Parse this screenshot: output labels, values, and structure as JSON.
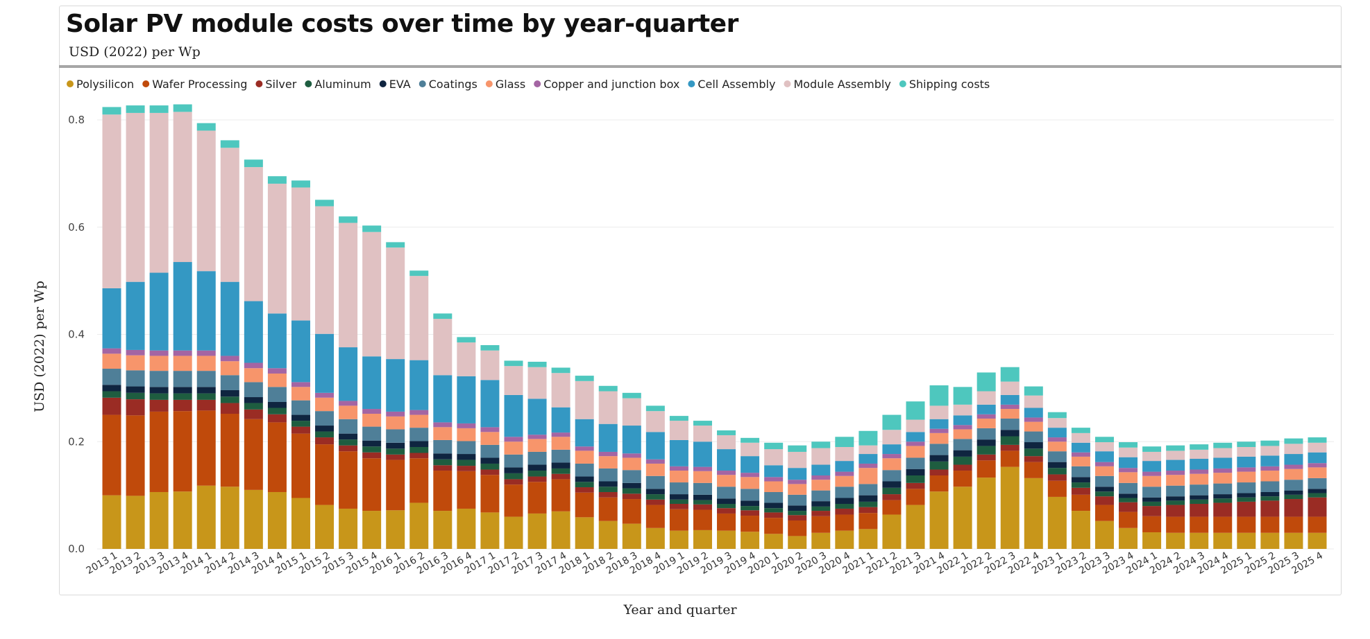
{
  "title": "Solar PV module costs over time by year-quarter",
  "subtitle": "USD (2022) per Wp",
  "chart_data": {
    "type": "bar",
    "stacked": true,
    "xlabel": "Year and quarter",
    "ylabel": "USD (2022) per Wp",
    "ylim": [
      0,
      0.85
    ],
    "yticks": [
      "0.0",
      "0.2",
      "0.4",
      "0.6",
      "0.8"
    ],
    "ytick_values": [
      0,
      0.2,
      0.4,
      0.6,
      0.8
    ],
    "grid": true,
    "legend_position": "top-left",
    "categories": [
      "2013 1",
      "2013 2",
      "2013 3",
      "2013 4",
      "2014 1",
      "2014 2",
      "2014 3",
      "2014 4",
      "2015 1",
      "2015 2",
      "2015 3",
      "2015 4",
      "2016 1",
      "2016 2",
      "2016 3",
      "2016 4",
      "2017 1",
      "2017 2",
      "2017 3",
      "2017 4",
      "2018 1",
      "2018 2",
      "2018 3",
      "2018 4",
      "2019 1",
      "2019 2",
      "2019 3",
      "2019 4",
      "2020 1",
      "2020 2",
      "2020 3",
      "2020 4",
      "2021 1",
      "2021 2",
      "2021 3",
      "2021 4",
      "2022 1",
      "2022 2",
      "2022 3",
      "2022 4",
      "2023 1",
      "2023 2",
      "2023 3",
      "2023 4",
      "2024 1",
      "2024 2",
      "2024 3",
      "2024 4",
      "2025 1",
      "2025 2",
      "2025 3",
      "2025 4"
    ],
    "series": [
      {
        "name": "Polysilicon",
        "color": "#c8961a",
        "values": [
          0.1,
          0.099,
          0.106,
          0.107,
          0.118,
          0.116,
          0.11,
          0.106,
          0.095,
          0.082,
          0.075,
          0.071,
          0.072,
          0.086,
          0.071,
          0.075,
          0.068,
          0.06,
          0.066,
          0.07,
          0.059,
          0.052,
          0.047,
          0.039,
          0.034,
          0.035,
          0.034,
          0.032,
          0.028,
          0.024,
          0.03,
          0.034,
          0.037,
          0.064,
          0.082,
          0.107,
          0.116,
          0.133,
          0.153,
          0.132,
          0.097,
          0.071,
          0.052,
          0.039,
          0.031,
          0.03,
          0.03,
          0.03,
          0.03,
          0.03,
          0.03,
          0.03
        ]
      },
      {
        "name": "Wafer Processing",
        "color": "#c04a0b",
        "values": [
          0.15,
          0.15,
          0.15,
          0.15,
          0.14,
          0.136,
          0.132,
          0.13,
          0.12,
          0.113,
          0.107,
          0.098,
          0.094,
          0.083,
          0.075,
          0.07,
          0.07,
          0.06,
          0.059,
          0.06,
          0.046,
          0.044,
          0.046,
          0.043,
          0.04,
          0.038,
          0.032,
          0.03,
          0.03,
          0.029,
          0.031,
          0.03,
          0.03,
          0.027,
          0.03,
          0.03,
          0.03,
          0.032,
          0.03,
          0.03,
          0.03,
          0.03,
          0.03,
          0.03,
          0.03,
          0.03,
          0.03,
          0.03,
          0.03,
          0.03,
          0.03,
          0.03
        ]
      },
      {
        "name": "Silver",
        "color": "#9a2c24",
        "values": [
          0.032,
          0.03,
          0.022,
          0.021,
          0.02,
          0.02,
          0.018,
          0.015,
          0.013,
          0.013,
          0.011,
          0.011,
          0.01,
          0.01,
          0.01,
          0.01,
          0.01,
          0.01,
          0.01,
          0.01,
          0.01,
          0.01,
          0.01,
          0.01,
          0.01,
          0.01,
          0.01,
          0.01,
          0.01,
          0.01,
          0.01,
          0.011,
          0.011,
          0.011,
          0.011,
          0.011,
          0.011,
          0.011,
          0.011,
          0.011,
          0.012,
          0.013,
          0.016,
          0.018,
          0.019,
          0.022,
          0.024,
          0.026,
          0.028,
          0.03,
          0.033,
          0.036
        ]
      },
      {
        "name": "Aluminum",
        "color": "#1e5d40",
        "values": [
          0.012,
          0.012,
          0.012,
          0.012,
          0.012,
          0.012,
          0.012,
          0.012,
          0.011,
          0.011,
          0.011,
          0.011,
          0.011,
          0.011,
          0.011,
          0.011,
          0.011,
          0.011,
          0.011,
          0.01,
          0.01,
          0.01,
          0.01,
          0.01,
          0.008,
          0.008,
          0.008,
          0.008,
          0.008,
          0.008,
          0.008,
          0.009,
          0.01,
          0.012,
          0.014,
          0.015,
          0.015,
          0.016,
          0.016,
          0.014,
          0.012,
          0.01,
          0.009,
          0.008,
          0.008,
          0.008,
          0.008,
          0.008,
          0.008,
          0.008,
          0.008,
          0.008
        ]
      },
      {
        "name": "EVA",
        "color": "#0f2540",
        "values": [
          0.012,
          0.012,
          0.012,
          0.012,
          0.012,
          0.012,
          0.011,
          0.011,
          0.011,
          0.011,
          0.011,
          0.011,
          0.011,
          0.011,
          0.011,
          0.011,
          0.011,
          0.011,
          0.011,
          0.011,
          0.01,
          0.01,
          0.01,
          0.01,
          0.01,
          0.01,
          0.01,
          0.01,
          0.01,
          0.01,
          0.01,
          0.011,
          0.012,
          0.012,
          0.012,
          0.012,
          0.012,
          0.012,
          0.012,
          0.012,
          0.011,
          0.01,
          0.009,
          0.008,
          0.008,
          0.008,
          0.008,
          0.008,
          0.008,
          0.008,
          0.008,
          0.008
        ]
      },
      {
        "name": "Coatings",
        "color": "#4f7f98",
        "values": [
          0.03,
          0.03,
          0.03,
          0.03,
          0.03,
          0.028,
          0.028,
          0.028,
          0.027,
          0.027,
          0.027,
          0.026,
          0.025,
          0.025,
          0.025,
          0.024,
          0.024,
          0.024,
          0.024,
          0.024,
          0.024,
          0.024,
          0.024,
          0.024,
          0.022,
          0.022,
          0.022,
          0.022,
          0.02,
          0.02,
          0.02,
          0.021,
          0.021,
          0.021,
          0.021,
          0.021,
          0.021,
          0.021,
          0.021,
          0.02,
          0.02,
          0.02,
          0.02,
          0.02,
          0.02,
          0.02,
          0.02,
          0.02,
          0.02,
          0.02,
          0.02,
          0.02
        ]
      },
      {
        "name": "Glass",
        "color": "#f7956b",
        "values": [
          0.028,
          0.028,
          0.028,
          0.028,
          0.028,
          0.026,
          0.026,
          0.025,
          0.025,
          0.025,
          0.025,
          0.024,
          0.024,
          0.024,
          0.024,
          0.024,
          0.024,
          0.024,
          0.024,
          0.024,
          0.024,
          0.023,
          0.023,
          0.023,
          0.022,
          0.022,
          0.022,
          0.022,
          0.02,
          0.02,
          0.02,
          0.02,
          0.03,
          0.022,
          0.022,
          0.02,
          0.018,
          0.018,
          0.018,
          0.018,
          0.018,
          0.018,
          0.018,
          0.02,
          0.02,
          0.02,
          0.02,
          0.02,
          0.02,
          0.02,
          0.02,
          0.02
        ]
      },
      {
        "name": "Copper and junction box",
        "color": "#a465a3",
        "values": [
          0.01,
          0.01,
          0.01,
          0.01,
          0.01,
          0.01,
          0.01,
          0.01,
          0.009,
          0.009,
          0.009,
          0.009,
          0.009,
          0.009,
          0.009,
          0.009,
          0.009,
          0.009,
          0.008,
          0.008,
          0.008,
          0.008,
          0.008,
          0.008,
          0.008,
          0.008,
          0.008,
          0.008,
          0.008,
          0.008,
          0.008,
          0.008,
          0.008,
          0.008,
          0.008,
          0.008,
          0.008,
          0.008,
          0.008,
          0.008,
          0.008,
          0.008,
          0.008,
          0.008,
          0.008,
          0.008,
          0.008,
          0.008,
          0.008,
          0.008,
          0.008,
          0.008
        ]
      },
      {
        "name": "Cell Assembly",
        "color": "#3498c3",
        "values": [
          0.112,
          0.127,
          0.145,
          0.165,
          0.148,
          0.138,
          0.115,
          0.102,
          0.115,
          0.11,
          0.1,
          0.098,
          0.098,
          0.093,
          0.088,
          0.088,
          0.088,
          0.078,
          0.067,
          0.047,
          0.051,
          0.052,
          0.052,
          0.051,
          0.049,
          0.047,
          0.04,
          0.031,
          0.022,
          0.022,
          0.02,
          0.02,
          0.018,
          0.018,
          0.018,
          0.018,
          0.018,
          0.018,
          0.018,
          0.018,
          0.018,
          0.018,
          0.02,
          0.02,
          0.02,
          0.02,
          0.02,
          0.02,
          0.02,
          0.02,
          0.02,
          0.02
        ]
      },
      {
        "name": "Module Assembly",
        "color": "#e0c1c2",
        "values": [
          0.324,
          0.315,
          0.298,
          0.28,
          0.262,
          0.25,
          0.25,
          0.242,
          0.248,
          0.238,
          0.232,
          0.232,
          0.208,
          0.157,
          0.105,
          0.063,
          0.055,
          0.054,
          0.059,
          0.064,
          0.071,
          0.061,
          0.051,
          0.039,
          0.036,
          0.03,
          0.026,
          0.025,
          0.03,
          0.03,
          0.031,
          0.026,
          0.016,
          0.027,
          0.023,
          0.025,
          0.02,
          0.025,
          0.025,
          0.023,
          0.018,
          0.018,
          0.017,
          0.018,
          0.017,
          0.017,
          0.017,
          0.018,
          0.018,
          0.018,
          0.019,
          0.018
        ]
      },
      {
        "name": "Shipping costs",
        "color": "#4ec7be",
        "values": [
          0.014,
          0.014,
          0.014,
          0.014,
          0.014,
          0.014,
          0.014,
          0.014,
          0.013,
          0.012,
          0.012,
          0.012,
          0.01,
          0.01,
          0.01,
          0.01,
          0.01,
          0.01,
          0.01,
          0.01,
          0.01,
          0.01,
          0.01,
          0.01,
          0.009,
          0.009,
          0.009,
          0.009,
          0.012,
          0.012,
          0.012,
          0.019,
          0.027,
          0.028,
          0.034,
          0.038,
          0.033,
          0.035,
          0.027,
          0.017,
          0.011,
          0.01,
          0.01,
          0.01,
          0.01,
          0.01,
          0.01,
          0.01,
          0.01,
          0.01,
          0.01,
          0.01
        ]
      }
    ]
  }
}
